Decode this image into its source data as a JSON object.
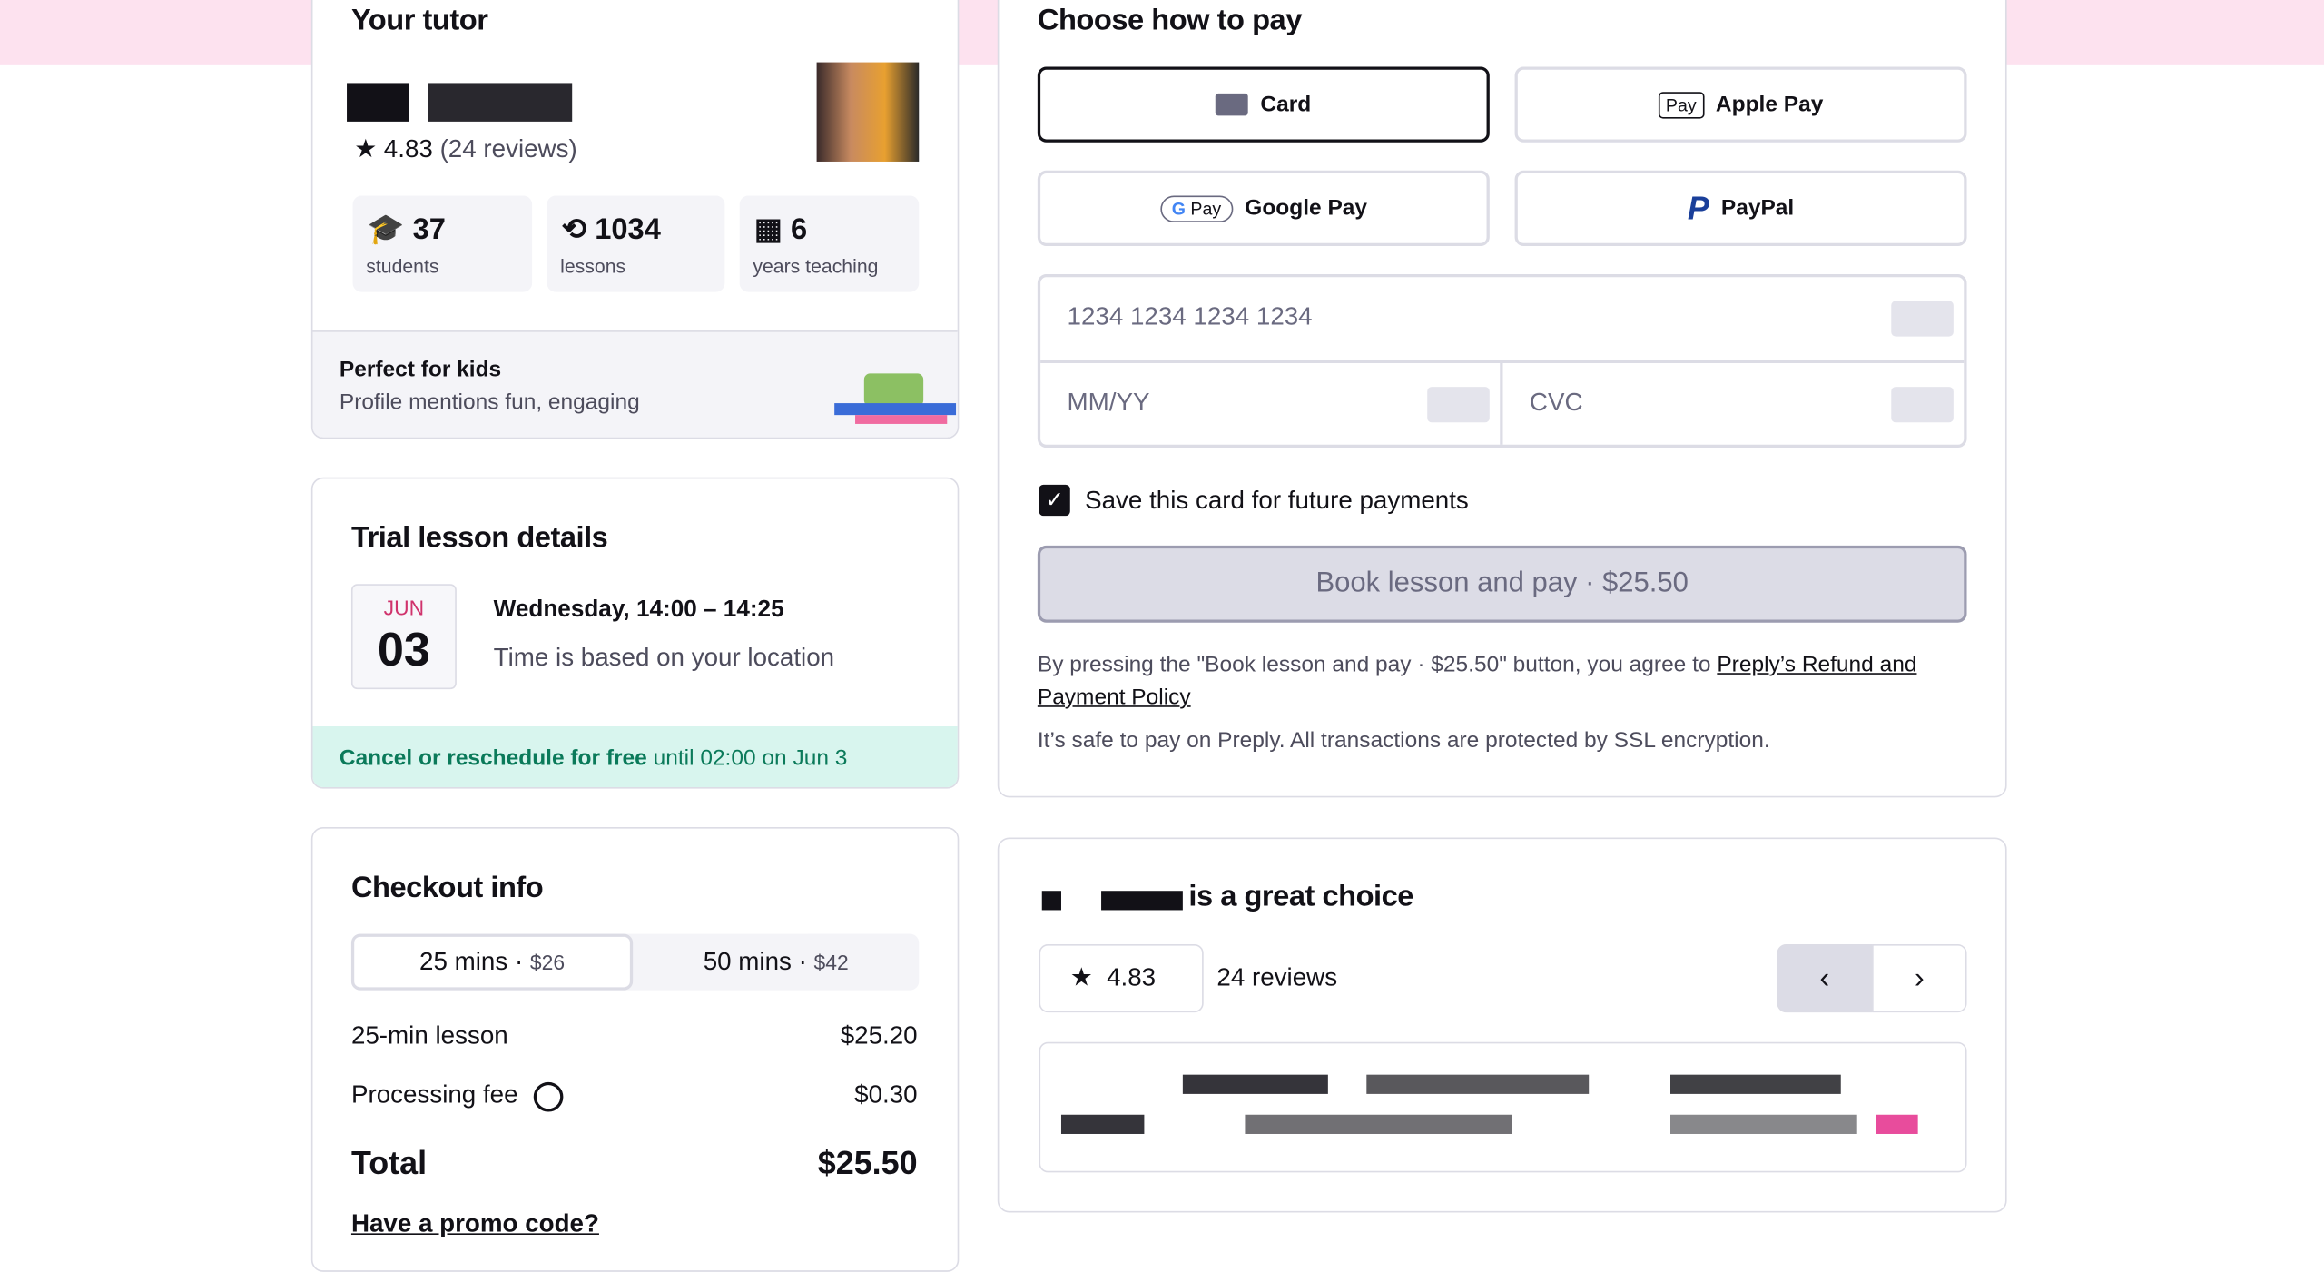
{
  "tutor": {
    "title": "Your tutor",
    "rating": "4.83",
    "reviews": "(24 reviews)",
    "stats": [
      {
        "value": "37",
        "label": "students"
      },
      {
        "value": "1034",
        "label": "lessons"
      },
      {
        "value": "6",
        "label": "years teaching"
      }
    ],
    "badge": {
      "title": "Perfect for kids",
      "text": "Profile mentions fun, engaging"
    }
  },
  "trial": {
    "title": "Trial lesson details",
    "month": "JUN",
    "day": "03",
    "time": "Wednesday, 14:00 – 14:25",
    "note": "Time is based on your location",
    "cancel": {
      "bold": "Cancel or reschedule for free",
      "rest": "until 02:00 on Jun 3"
    }
  },
  "checkout": {
    "title": "Checkout info",
    "options": [
      {
        "label": "25 mins",
        "price": "$26"
      },
      {
        "label": "50 mins",
        "price": "$42"
      }
    ],
    "lines": [
      {
        "label": "25-min lesson",
        "amount": "$25.20"
      },
      {
        "label": "Processing fee",
        "amount": "$0.30"
      }
    ],
    "total": {
      "label": "Total",
      "amount": "$25.50"
    },
    "promo": "Have a promo code?"
  },
  "payment": {
    "title": "Choose how to pay",
    "methods": [
      {
        "name": "Card"
      },
      {
        "name": "Apple Pay",
        "icon_text": "Pay"
      },
      {
        "name": "Google Pay",
        "icon_text": "Pay"
      },
      {
        "name": "PayPal"
      }
    ],
    "card_number": "1234 1234 1234 1234",
    "expiry": "MM/YY",
    "cvc": "CVC",
    "save": "Save this card for future payments",
    "button": "Book lesson and pay · $25.50",
    "terms": "By pressing the \"Book lesson and pay · $25.50\" button, you agree to",
    "link": "Preply’s Refund and Payment Policy",
    "safe": "It’s safe to pay on Preply. All transactions are protected by SSL encryption."
  },
  "choice": {
    "title": "is a great choice",
    "rating": "4.83",
    "reviews": "24 reviews"
  }
}
